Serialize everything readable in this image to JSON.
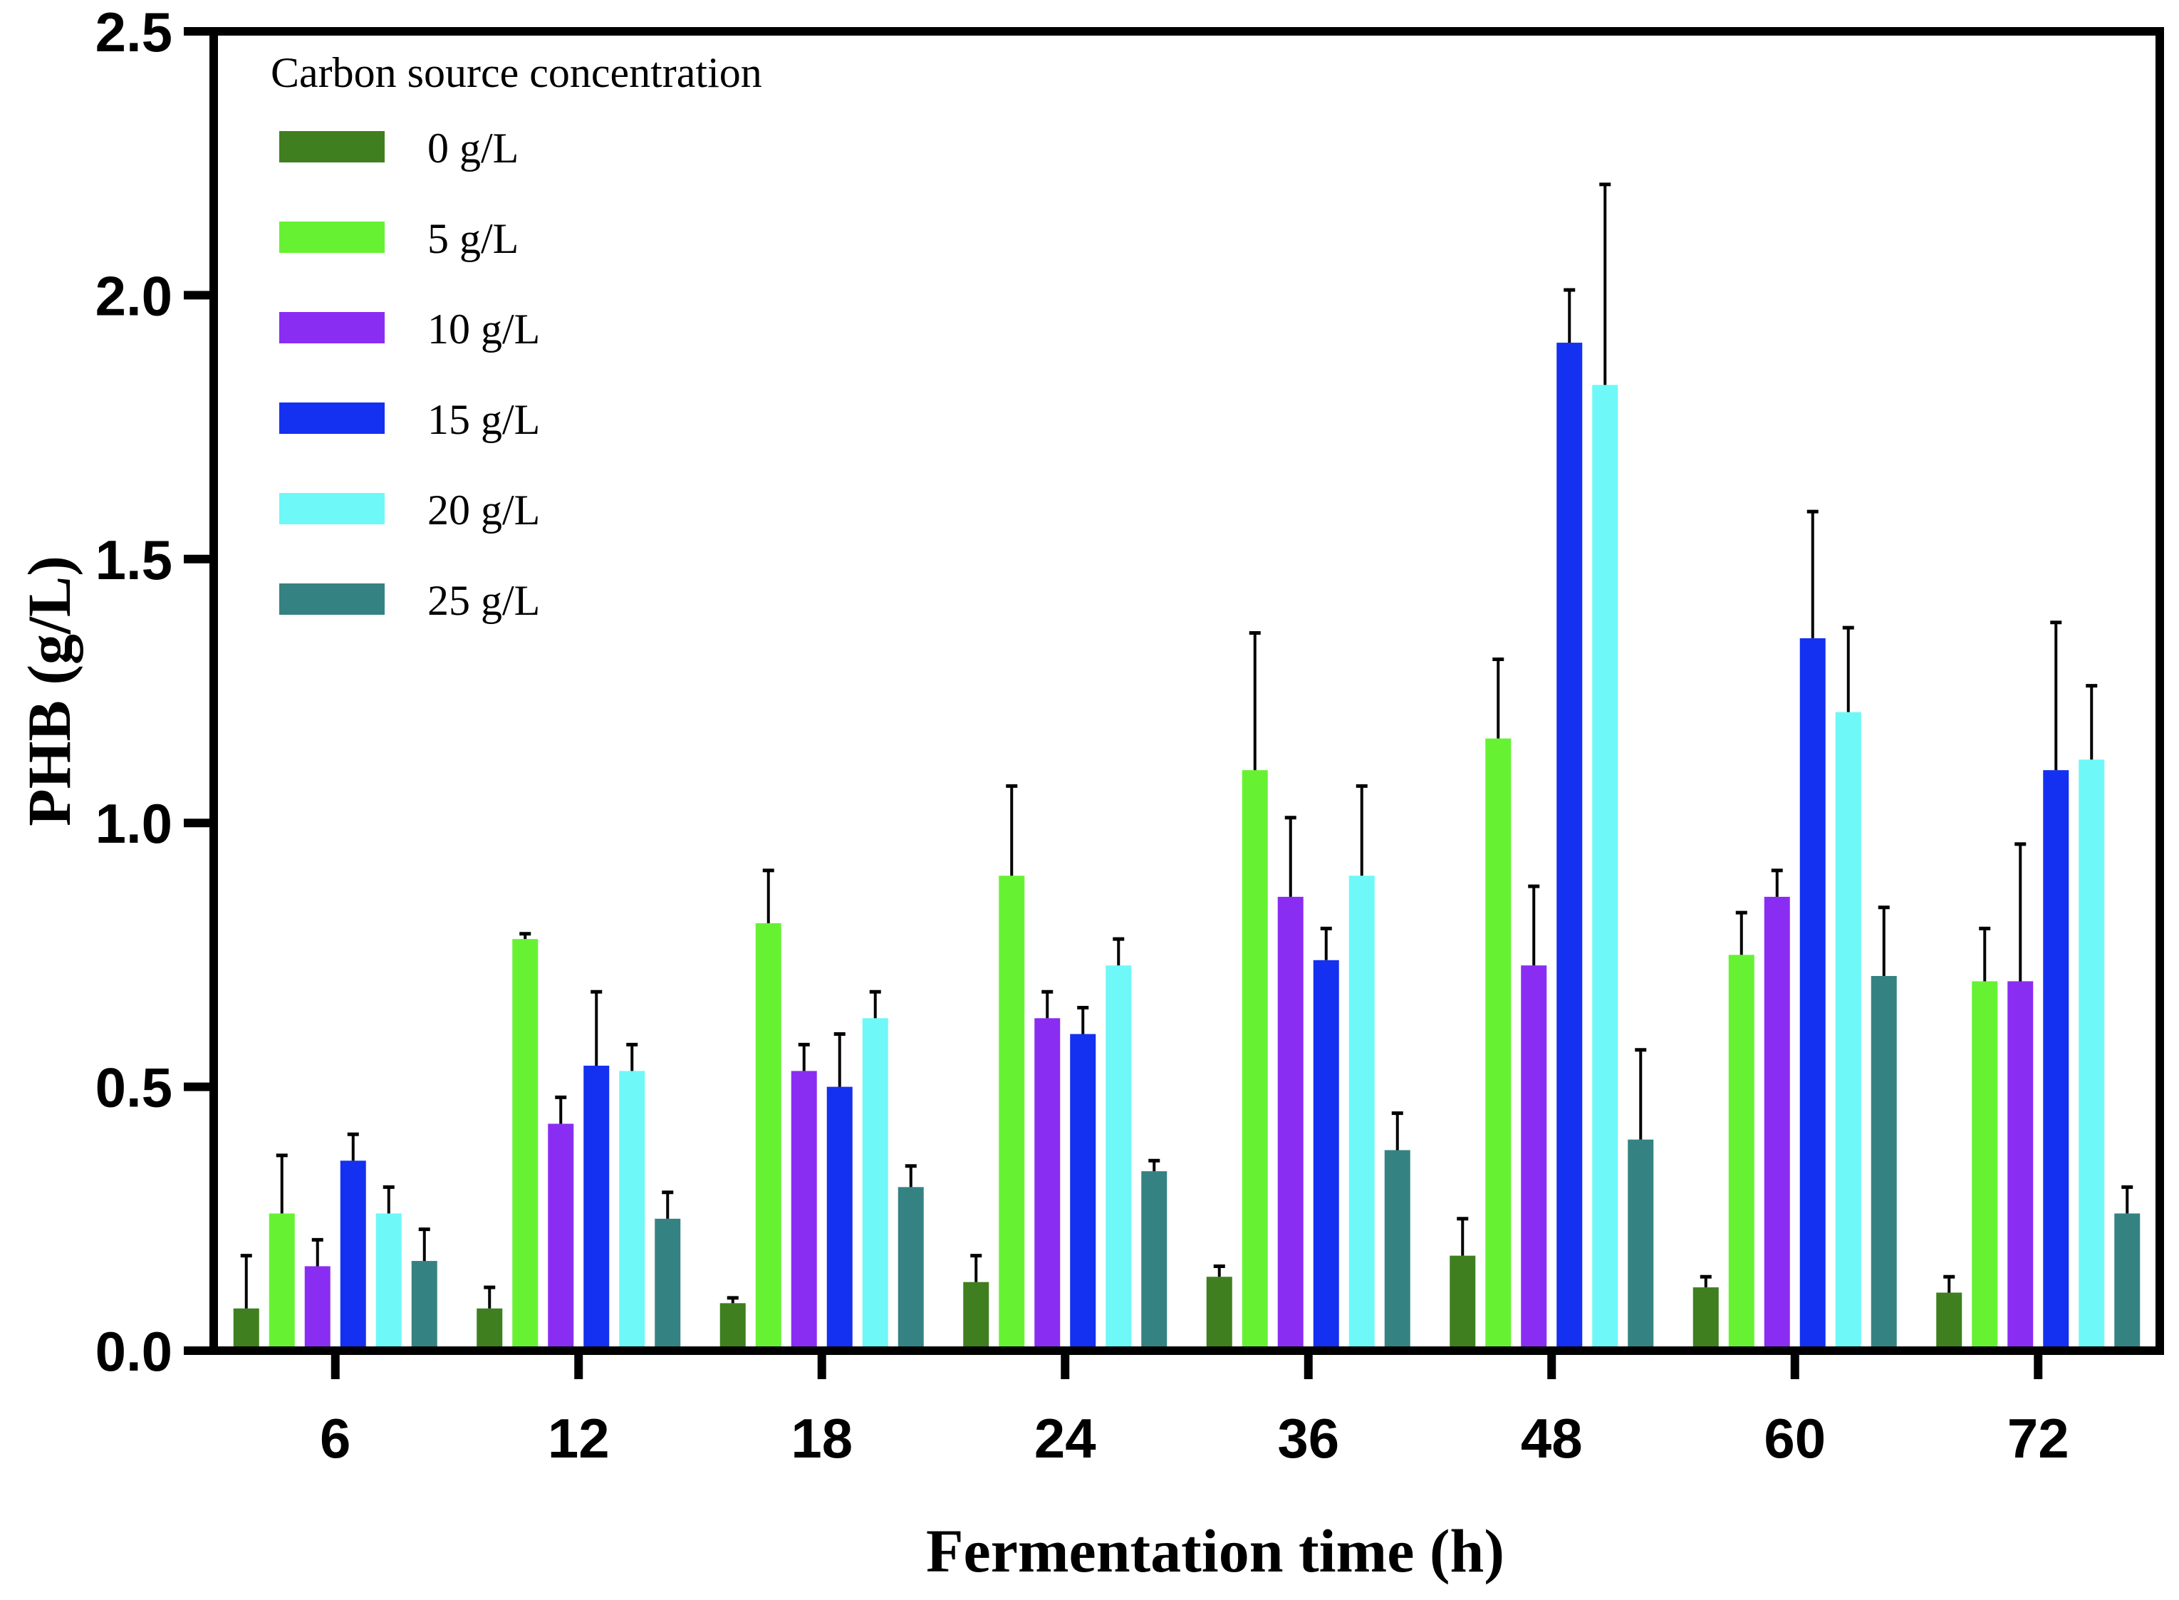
{
  "chart_data": {
    "type": "bar",
    "title": "",
    "xlabel": "Fermentation time (h)",
    "ylabel": "PHB (g/L)",
    "ylim": [
      0,
      2.5
    ],
    "yticks": [
      "0.0",
      "0.5",
      "1.0",
      "1.5",
      "2.0",
      "2.5"
    ],
    "legend_title": "Carbon source concentration",
    "legend_position": "top-left",
    "categories": [
      "6",
      "12",
      "18",
      "24",
      "36",
      "48",
      "60",
      "72"
    ],
    "series": [
      {
        "name": "0 g/L",
        "color": "#3f7f1f",
        "values": [
          0.08,
          0.08,
          0.09,
          0.13,
          0.14,
          0.18,
          0.12,
          0.11
        ],
        "errors": [
          0.1,
          0.04,
          0.01,
          0.05,
          0.02,
          0.07,
          0.02,
          0.03
        ]
      },
      {
        "name": "5 g/L",
        "color": "#66f233",
        "values": [
          0.26,
          0.78,
          0.81,
          0.9,
          1.1,
          1.16,
          0.75,
          0.7
        ],
        "errors": [
          0.11,
          0.01,
          0.1,
          0.17,
          0.26,
          0.15,
          0.08,
          0.1
        ]
      },
      {
        "name": "10 g/L",
        "color": "#8a2df2",
        "values": [
          0.16,
          0.43,
          0.53,
          0.63,
          0.86,
          0.73,
          0.86,
          0.7
        ],
        "errors": [
          0.05,
          0.05,
          0.05,
          0.05,
          0.15,
          0.15,
          0.05,
          0.26
        ]
      },
      {
        "name": "15 g/L",
        "color": "#1430f0",
        "values": [
          0.36,
          0.54,
          0.5,
          0.6,
          0.74,
          1.91,
          1.35,
          1.1
        ],
        "errors": [
          0.05,
          0.14,
          0.1,
          0.05,
          0.06,
          0.1,
          0.24,
          0.28
        ]
      },
      {
        "name": "20 g/L",
        "color": "#6ef8f8",
        "values": [
          0.26,
          0.53,
          0.63,
          0.73,
          0.9,
          1.83,
          1.21,
          1.12
        ],
        "errors": [
          0.05,
          0.05,
          0.05,
          0.05,
          0.17,
          0.38,
          0.16,
          0.14
        ]
      },
      {
        "name": "25 g/L",
        "color": "#358282",
        "values": [
          0.17,
          0.25,
          0.31,
          0.34,
          0.38,
          0.4,
          0.71,
          0.26
        ],
        "errors": [
          0.06,
          0.05,
          0.04,
          0.02,
          0.07,
          0.17,
          0.13,
          0.05
        ]
      }
    ]
  }
}
